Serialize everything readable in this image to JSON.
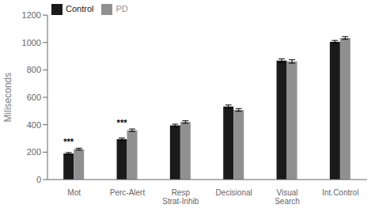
{
  "chart_data": {
    "type": "bar",
    "categories": [
      "Mot",
      "Perc-Alert",
      "Resp Strat-Inhib",
      "Decisional",
      "Visual Search",
      "Int.Control"
    ],
    "series": [
      {
        "name": "Control",
        "color": "#1a1a1a",
        "values": [
          190,
          295,
          395,
          533,
          868,
          1005
        ],
        "errors": [
          7,
          9,
          9,
          11,
          13,
          10
        ]
      },
      {
        "name": "PD",
        "color": "#909090",
        "values": [
          222,
          360,
          420,
          508,
          862,
          1033
        ],
        "errors": [
          7,
          9,
          9,
          10,
          13,
          10
        ]
      }
    ],
    "ylabel": "Miliseconds",
    "ylim": [
      0,
      1200
    ],
    "yticks": [
      0,
      200,
      400,
      600,
      800,
      1000,
      1200
    ],
    "grid": false,
    "legend": "upper left",
    "annotations": [
      {
        "category": "Mot",
        "series": "Control",
        "text": "***"
      },
      {
        "category": "Perc-Alert",
        "series": "Control",
        "text": "***"
      }
    ]
  }
}
